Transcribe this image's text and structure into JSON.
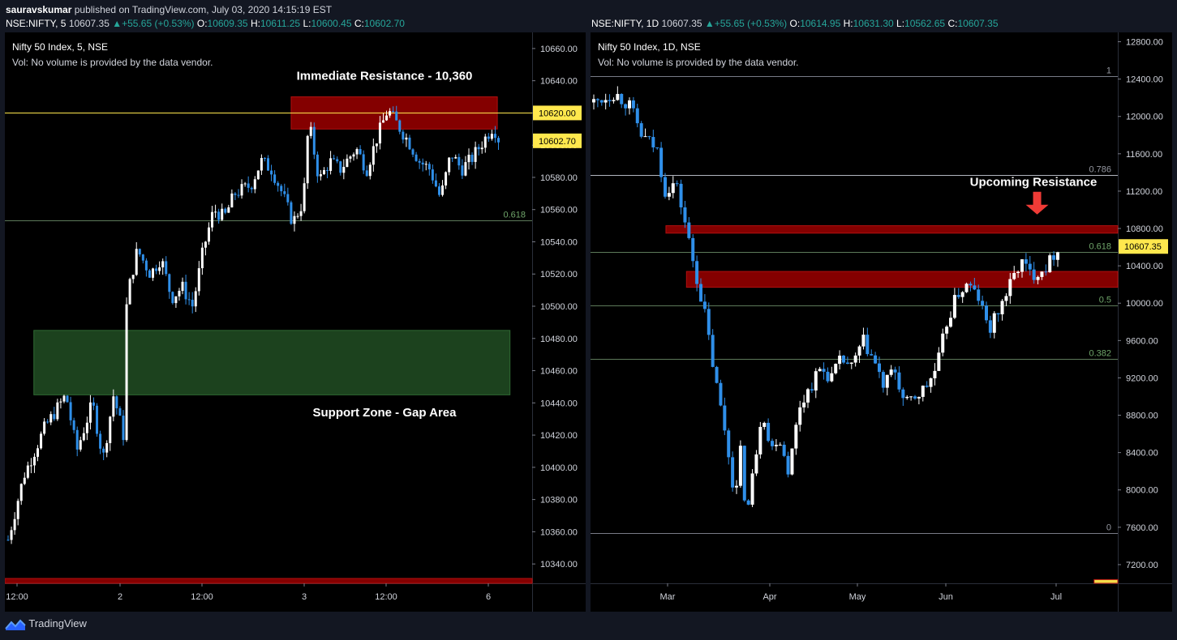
{
  "header": {
    "publisher": "sauravskumar",
    "published_text": "published on TradingView.com, July 03, 2020 14:15:19 EST"
  },
  "charts_meta": [
    {
      "symbol": "NSE:NIFTY, 5",
      "last": "10607.35",
      "change": "+55.65 (+0.53%)",
      "O": "10609.35",
      "H": "10611.25",
      "L": "10600.45",
      "C": "10602.70"
    },
    {
      "symbol": "NSE:NIFTY, 1D",
      "last": "10607.35",
      "change": "+55.65 (+0.53%)",
      "O": "10614.95",
      "H": "10631.30",
      "L": "10562.65",
      "C": "10607.35"
    }
  ],
  "colors": {
    "background": "#000000",
    "page": "#131722",
    "up": "#ffffff",
    "down": "#2f8fe9",
    "resistance": "#8b0000",
    "support": "#1e4620",
    "price_badge": "#ffe84d",
    "fib_line": "#9fb59c",
    "arrow": "#ef3b36"
  },
  "chart_data": [
    {
      "type": "candlestick",
      "title": "Nifty 50 Index, 5, NSE",
      "subtitle": "Vol: No volume is provided by the data vendor.",
      "x_tick_labels": [
        "12:00",
        "2",
        "12:00",
        "3",
        "12:00",
        "6"
      ],
      "ylim": [
        10328,
        10670
      ],
      "y_ticks": [
        10340,
        10360,
        10380,
        10400,
        10420,
        10440,
        10460,
        10480,
        10500,
        10520,
        10540,
        10560,
        10580,
        10600,
        10620,
        10640,
        10660
      ],
      "y_tick_format": "2dec",
      "price_badges": [
        {
          "label": "10620.00",
          "value": 10620
        },
        {
          "label": "10602.70",
          "value": 10602.7
        }
      ],
      "horizontal_lines": [
        {
          "value": 10620,
          "color": "#ffe84d",
          "label": ""
        },
        {
          "value": 10553.5,
          "color": "#5d7a5a",
          "label": "0.618"
        }
      ],
      "zones": [
        {
          "name": "resistance",
          "y1": 10610,
          "y2": 10630,
          "x_start": 0.543,
          "x_end": 0.934,
          "color": "#8b0000"
        },
        {
          "name": "support",
          "y1": 10445,
          "y2": 10485,
          "x_start": 0.055,
          "x_end": 0.958,
          "color": "#1e4620"
        },
        {
          "name": "bottom",
          "y1": 10328,
          "y2": 10331,
          "x_start": 0,
          "x_end": 1,
          "color": "#8b0000"
        }
      ],
      "annotations": [
        {
          "text": "Immediate Resistance - 10,360",
          "x": 0.72,
          "y": 10643
        },
        {
          "text": "Support Zone - Gap Area",
          "x": 0.72,
          "y": 10434
        }
      ],
      "path": [
        [
          0,
          10355
        ],
        [
          0.03,
          10395
        ],
        [
          0.07,
          10425
        ],
        [
          0.11,
          10445
        ],
        [
          0.13,
          10410
        ],
        [
          0.16,
          10440
        ],
        [
          0.18,
          10405
        ],
        [
          0.2,
          10445
        ],
        [
          0.22,
          10418
        ],
        [
          0.225,
          10505
        ],
        [
          0.245,
          10535
        ],
        [
          0.27,
          10520
        ],
        [
          0.29,
          10530
        ],
        [
          0.31,
          10505
        ],
        [
          0.33,
          10512
        ],
        [
          0.35,
          10500
        ],
        [
          0.37,
          10535
        ],
        [
          0.39,
          10560
        ],
        [
          0.41,
          10555
        ],
        [
          0.43,
          10570
        ],
        [
          0.46,
          10575
        ],
        [
          0.48,
          10590
        ],
        [
          0.5,
          10585
        ],
        [
          0.52,
          10570
        ],
        [
          0.54,
          10552
        ],
        [
          0.56,
          10565
        ],
        [
          0.57,
          10615
        ],
        [
          0.59,
          10578
        ],
        [
          0.61,
          10590
        ],
        [
          0.63,
          10585
        ],
        [
          0.66,
          10598
        ],
        [
          0.68,
          10585
        ],
        [
          0.7,
          10605
        ],
        [
          0.72,
          10622
        ],
        [
          0.74,
          10612
        ],
        [
          0.76,
          10602
        ],
        [
          0.78,
          10590
        ],
        [
          0.8,
          10585
        ],
        [
          0.82,
          10567
        ],
        [
          0.84,
          10595
        ],
        [
          0.86,
          10585
        ],
        [
          0.88,
          10592
        ],
        [
          0.9,
          10602
        ],
        [
          0.92,
          10612
        ],
        [
          0.93,
          10604
        ]
      ]
    },
    {
      "type": "candlestick",
      "title": "Nifty 50 Index, 1D, NSE",
      "subtitle": "Vol: No volume is provided by the data vendor.",
      "x_tick_labels": [
        "Mar",
        "Apr",
        "May",
        "Jun",
        "Jul"
      ],
      "ylim": [
        7000,
        12900
      ],
      "y_ticks": [
        7200,
        7600,
        8000,
        8400,
        8800,
        9200,
        9600,
        10000,
        10400,
        10800,
        11200,
        11600,
        12000,
        12400,
        12800
      ],
      "y_tick_format": "2dec",
      "price_badges": [
        {
          "label": "10607.35",
          "value": 10607.35
        }
      ],
      "horizontal_lines": [
        {
          "value": 12430,
          "color": "#787b86",
          "label": "1"
        },
        {
          "value": 11370,
          "color": "#b2b5be",
          "label": "0.786"
        },
        {
          "value": 10550,
          "color": "#5d7a5a",
          "label": "0.618"
        },
        {
          "value": 9980,
          "color": "#5d7a5a",
          "label": "0.5"
        },
        {
          "value": 9400,
          "color": "#5d7a5a",
          "label": "0.382"
        },
        {
          "value": 7540,
          "color": "#787b86",
          "label": "0"
        }
      ],
      "zones": [
        {
          "name": "upcoming-resistance",
          "y1": 10750,
          "y2": 10830,
          "x_start": 0.143,
          "x_end": 1,
          "color": "#8b0000"
        },
        {
          "name": "breakout-zone",
          "y1": 10170,
          "y2": 10340,
          "x_start": 0.182,
          "x_end": 1,
          "color": "#8b0000"
        },
        {
          "name": "bottom",
          "y1": 7000,
          "y2": 7040,
          "x_start": 0.955,
          "x_end": 1,
          "color": "#ffe84d"
        }
      ],
      "annotations": [
        {
          "text": "Upcoming Resistance",
          "x": 0.84,
          "y": 11300
        }
      ],
      "path": [
        [
          0,
          12150
        ],
        [
          0.04,
          12250
        ],
        [
          0.07,
          12100
        ],
        [
          0.09,
          11800
        ],
        [
          0.12,
          11650
        ],
        [
          0.135,
          11200
        ],
        [
          0.155,
          11300
        ],
        [
          0.17,
          10950
        ],
        [
          0.19,
          10400
        ],
        [
          0.21,
          9900
        ],
        [
          0.23,
          9200
        ],
        [
          0.25,
          8600
        ],
        [
          0.26,
          8200
        ],
        [
          0.27,
          7900
        ],
        [
          0.275,
          8600
        ],
        [
          0.29,
          7700
        ],
        [
          0.305,
          8300
        ],
        [
          0.32,
          8900
        ],
        [
          0.335,
          8400
        ],
        [
          0.35,
          8600
        ],
        [
          0.37,
          8200
        ],
        [
          0.39,
          8900
        ],
        [
          0.41,
          9100
        ],
        [
          0.43,
          9300
        ],
        [
          0.45,
          9200
        ],
        [
          0.47,
          9400
        ],
        [
          0.49,
          9300
        ],
        [
          0.51,
          9600
        ],
        [
          0.53,
          9400
        ],
        [
          0.55,
          9100
        ],
        [
          0.57,
          9300
        ],
        [
          0.59,
          8900
        ],
        [
          0.61,
          9000
        ],
        [
          0.63,
          9100
        ],
        [
          0.65,
          9300
        ],
        [
          0.67,
          9800
        ],
        [
          0.69,
          10100
        ],
        [
          0.71,
          10200
        ],
        [
          0.73,
          10050
        ],
        [
          0.75,
          9700
        ],
        [
          0.77,
          9950
        ],
        [
          0.79,
          10200
        ],
        [
          0.81,
          10450
        ],
        [
          0.83,
          10300
        ],
        [
          0.86,
          10400
        ],
        [
          0.88,
          10600
        ]
      ]
    }
  ],
  "footer": {
    "brand": "TradingView"
  }
}
